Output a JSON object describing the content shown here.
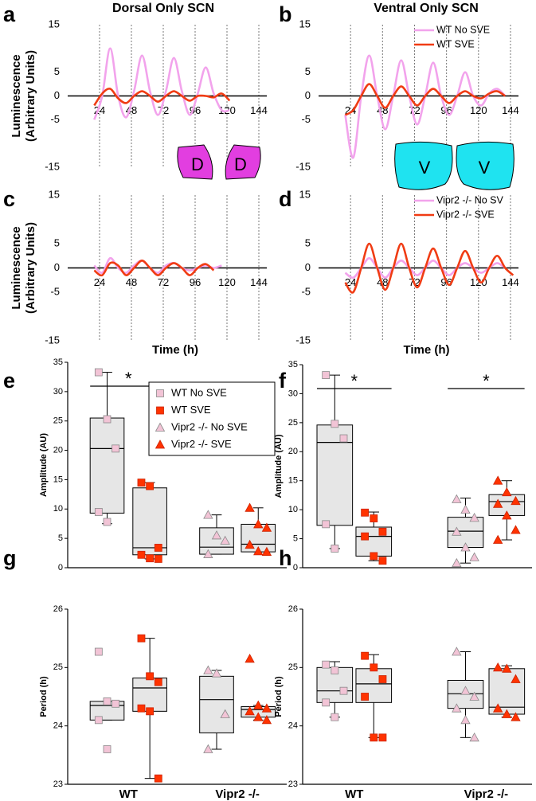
{
  "chart_data": [
    {
      "type": "line",
      "label": "a",
      "title": "Dorsal Only SCN",
      "ylabel": [
        "Luminescence",
        "(Arbitrary Units)"
      ],
      "x": [
        20,
        26,
        32,
        38,
        44,
        50,
        56,
        62,
        68,
        74,
        80,
        86,
        92,
        98,
        104,
        110,
        116,
        122,
        128,
        134,
        140,
        146
      ],
      "xlim": [
        0,
        150
      ],
      "xticks": [
        24,
        48,
        72,
        96,
        120,
        144
      ],
      "ylim": [
        -15,
        15
      ],
      "yticks": [
        15,
        5,
        0,
        -5,
        -15
      ],
      "x_grid": true,
      "series": [
        {
          "color": "#f2a3ec",
          "values": [
            -5,
            0,
            10,
            0,
            -4.5,
            1,
            8.5,
            1,
            -4,
            1,
            8,
            1,
            -4,
            0.5,
            6,
            0.5,
            -3,
            -3,
            null,
            null,
            null,
            null
          ]
        },
        {
          "color": "#f03c14",
          "values": [
            -2,
            0.5,
            1.5,
            -0.5,
            -1.5,
            0,
            1,
            0,
            -1.2,
            0,
            1,
            0,
            -1,
            0,
            0,
            -0.3,
            0.5,
            -1,
            null,
            null,
            null,
            null
          ]
        }
      ],
      "annotations": [
        "D",
        "D"
      ]
    },
    {
      "type": "line",
      "label": "b",
      "title": "Ventral Only SCN",
      "x": [
        20,
        26,
        32,
        38,
        44,
        50,
        56,
        62,
        68,
        74,
        80,
        86,
        92,
        98,
        104,
        110,
        116,
        122,
        128,
        134,
        140,
        146
      ],
      "xlim": [
        0,
        150
      ],
      "xticks": [
        24,
        48,
        72,
        96,
        120,
        144
      ],
      "ylim": [
        -15,
        15
      ],
      "yticks": [
        15,
        5,
        0,
        -5,
        -15
      ],
      "x_grid": true,
      "series": [
        {
          "name": "WT No SVE",
          "color": "#f2a3ec",
          "values": [
            -4,
            -13,
            0,
            8.5,
            0,
            -7,
            0,
            7.5,
            0,
            -6,
            0,
            7,
            0,
            -4,
            0,
            5,
            0,
            -2,
            0.5,
            1.5,
            0,
            null
          ]
        },
        {
          "name": "WT SVE",
          "color": "#f03c14",
          "values": [
            -4,
            -3,
            0,
            2.5,
            0,
            -2.5,
            0,
            2,
            0,
            -2,
            0,
            1.5,
            0,
            -1.5,
            0,
            1,
            0,
            -0.5,
            0.5,
            1,
            0,
            null
          ]
        }
      ],
      "annotations": [
        "V",
        "V"
      ]
    },
    {
      "type": "line",
      "label": "c",
      "ylabel": [
        "Luminescence",
        "(Arbitrary Units)"
      ],
      "xlabel": "Time (h)",
      "x": [
        20,
        26,
        32,
        38,
        44,
        50,
        56,
        62,
        68,
        74,
        80,
        86,
        92,
        98,
        104,
        110,
        116,
        122,
        128,
        134,
        140,
        146
      ],
      "xlim": [
        0,
        150
      ],
      "xticks": [
        24,
        48,
        72,
        96,
        120,
        144
      ],
      "ylim": [
        -15,
        15
      ],
      "yticks": [
        15,
        5,
        0,
        -5,
        -15
      ],
      "x_grid": true,
      "series": [
        {
          "color": "#f2a3ec",
          "values": [
            0.5,
            -1,
            2,
            0,
            -1,
            0.5,
            1.5,
            0,
            -1,
            0.5,
            1,
            0,
            -0.5,
            0,
            0.5,
            0,
            0.5,
            null,
            null,
            null,
            null,
            null
          ]
        },
        {
          "color": "#f03c14",
          "values": [
            -0.5,
            -1.5,
            1,
            0.5,
            -1.5,
            0,
            1.5,
            0,
            -1.5,
            0,
            1,
            0,
            -1.5,
            0,
            0.8,
            -0.5,
            null,
            null,
            null,
            null,
            null,
            null
          ]
        }
      ]
    },
    {
      "type": "line",
      "label": "d",
      "xlabel": "Time (h)",
      "x": [
        20,
        26,
        32,
        38,
        44,
        50,
        56,
        62,
        68,
        74,
        80,
        86,
        92,
        98,
        104,
        110,
        116,
        122,
        128,
        134,
        140,
        146
      ],
      "xlim": [
        0,
        150
      ],
      "xticks": [
        24,
        48,
        72,
        96,
        120,
        144
      ],
      "ylim": [
        -15,
        15
      ],
      "yticks": [
        15,
        5,
        0,
        -5,
        -15
      ],
      "x_grid": true,
      "series": [
        {
          "name": "Vipr2 -/- No SV",
          "color": "#f2a3ec",
          "values": [
            -1,
            -2,
            0,
            2,
            0,
            -2,
            0,
            1.5,
            0,
            -1.5,
            0,
            1.5,
            0,
            -1.5,
            0,
            1,
            0,
            -1,
            0,
            1,
            0,
            null
          ]
        },
        {
          "name": "Vipr2 -/- SVE",
          "color": "#f03c14",
          "values": [
            -3,
            -5,
            0,
            5,
            0,
            -4.5,
            0,
            5,
            0,
            -4,
            0,
            4,
            0,
            -3.5,
            0,
            3.5,
            0,
            -3,
            0,
            2.5,
            0,
            -1.5
          ]
        }
      ]
    },
    {
      "type": "box",
      "label": "e",
      "ylabel": "Amplitude (AU)",
      "ylim": [
        0,
        35
      ],
      "yticks": [
        0,
        5,
        10,
        15,
        20,
        25,
        30,
        35
      ],
      "series": [
        {
          "name": "WT No SVE",
          "color": "#f2c4d6",
          "marker": "square",
          "min": 7.5,
          "q1": 9.3,
          "median": 20.3,
          "q3": 25.5,
          "max": 33.3,
          "points": [
            33.3,
            25.3,
            20.3,
            9.5,
            7.8
          ]
        },
        {
          "name": "WT SVE",
          "color": "#ff3300",
          "marker": "square",
          "min": 1.5,
          "q1": 2.2,
          "median": 3.4,
          "q3": 13.6,
          "max": 14.5,
          "points": [
            14.5,
            13.9,
            3.4,
            2.2,
            1.6,
            1.5
          ]
        },
        {
          "name": "Vipr2 -/- No SVE",
          "color": "#f2c4d6",
          "marker": "triangle",
          "min": 2.3,
          "q1": 2.3,
          "median": 3.5,
          "q3": 6.8,
          "max": 9,
          "points": [
            9,
            5.5,
            4.6,
            2.3
          ]
        },
        {
          "name": "Vipr2 -/- SVE",
          "color": "#ff3300",
          "marker": "triangle",
          "min": 2.7,
          "q1": 2.7,
          "median": 4,
          "q3": 7.4,
          "max": 10.2,
          "points": [
            10.2,
            7.4,
            6.8,
            3.9,
            2.8,
            2.7
          ]
        }
      ],
      "significance": [
        {
          "label": "*",
          "between": [
            0,
            1
          ]
        }
      ]
    },
    {
      "type": "box",
      "label": "f",
      "ylabel": "Amplitude (AU)",
      "ylim": [
        0,
        35
      ],
      "yticks": [
        0,
        5,
        10,
        15,
        20,
        25,
        30,
        35
      ],
      "series": [
        {
          "color": "#f2c4d6",
          "marker": "square",
          "min": 3.3,
          "q1": 7.3,
          "median": 21.6,
          "q3": 24.6,
          "max": 33.2,
          "points": [
            33.2,
            24.8,
            22.3,
            7.5,
            3.3
          ]
        },
        {
          "color": "#ff3300",
          "marker": "square",
          "min": 1.2,
          "q1": 2,
          "median": 5.4,
          "q3": 7,
          "max": 9.6,
          "points": [
            9.5,
            8.5,
            6.2,
            5.4,
            2,
            1.2
          ]
        },
        {
          "color": "#f2c4d6",
          "marker": "triangle",
          "min": 0.8,
          "q1": 3.5,
          "median": 6.3,
          "q3": 8.7,
          "max": 12,
          "points": [
            11.8,
            10,
            8.6,
            6.2,
            3.5,
            1.8,
            0.8
          ]
        },
        {
          "color": "#ff3300",
          "marker": "triangle",
          "min": 4.8,
          "q1": 9,
          "median": 11.4,
          "q3": 12.6,
          "max": 15,
          "points": [
            15,
            13,
            11.5,
            11,
            9,
            6.5,
            4.8
          ]
        }
      ],
      "significance": [
        {
          "label": "*",
          "between": [
            0,
            1
          ]
        },
        {
          "label": "*",
          "between": [
            2,
            3
          ]
        }
      ]
    },
    {
      "type": "box",
      "label": "g",
      "ylabel": "Period (h)",
      "ylim": [
        23,
        26
      ],
      "yticks": [
        23,
        24,
        25,
        26
      ],
      "categories": [
        "WT",
        "Vipr2 -/-"
      ],
      "series": [
        {
          "color": "#f2c4d6",
          "marker": "square",
          "min": 24.1,
          "q1": 24.1,
          "median": 24.35,
          "q3": 24.42,
          "max": 24.42,
          "points": [
            25.27,
            24.42,
            24.38,
            24.1,
            23.6
          ]
        },
        {
          "color": "#ff3300",
          "marker": "square",
          "min": 23.1,
          "q1": 24.25,
          "median": 24.65,
          "q3": 24.82,
          "max": 25.5,
          "points": [
            25.5,
            24.85,
            24.75,
            24.3,
            24.25,
            23.1
          ]
        },
        {
          "color": "#f2c4d6",
          "marker": "triangle",
          "min": 23.6,
          "q1": 23.88,
          "median": 24.45,
          "q3": 24.85,
          "max": 24.95,
          "points": [
            24.95,
            24.9,
            24.2,
            23.6
          ]
        },
        {
          "color": "#ff3300",
          "marker": "triangle",
          "min": 24.1,
          "q1": 24.15,
          "median": 24.28,
          "q3": 24.33,
          "max": 24.35,
          "points": [
            25.15,
            24.35,
            24.3,
            24.25,
            24.15,
            24.1
          ]
        }
      ]
    },
    {
      "type": "box",
      "label": "h",
      "ylabel": "Period (h)",
      "ylim": [
        23,
        26
      ],
      "yticks": [
        23,
        24,
        25,
        26
      ],
      "categories": [
        "WT",
        "Vipr2 -/-"
      ],
      "series": [
        {
          "color": "#f2c4d6",
          "marker": "square",
          "min": 24.15,
          "q1": 24.4,
          "median": 24.6,
          "q3": 25,
          "max": 25.1,
          "points": [
            25.05,
            24.95,
            24.6,
            24.4,
            24.15
          ]
        },
        {
          "color": "#ff3300",
          "marker": "square",
          "min": 23.8,
          "q1": 24.4,
          "median": 24.72,
          "q3": 24.98,
          "max": 25.22,
          "points": [
            25.2,
            25,
            24.8,
            24.5,
            23.8,
            23.8
          ]
        },
        {
          "color": "#f2c4d6",
          "marker": "triangle",
          "min": 23.8,
          "q1": 24.3,
          "median": 24.55,
          "q3": 24.78,
          "max": 25.27,
          "points": [
            25.27,
            24.6,
            24.5,
            24.3,
            24.1,
            23.8
          ]
        },
        {
          "color": "#ff3300",
          "marker": "triangle",
          "min": 24.15,
          "q1": 24.2,
          "median": 24.32,
          "q3": 24.98,
          "max": 25.03,
          "points": [
            25,
            24.98,
            24.8,
            24.3,
            24.2,
            24.15
          ]
        }
      ]
    }
  ]
}
